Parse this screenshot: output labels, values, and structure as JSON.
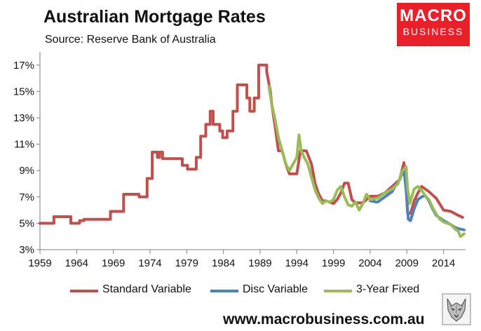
{
  "header": {
    "title": "Australian Mortgage Rates",
    "subtitle": "Source: Reserve Bank of Australia"
  },
  "logo": {
    "line1": "MACRO",
    "line2": "BUSINESS"
  },
  "footer": {
    "url": "www.macrobusiness.com.au"
  },
  "colors": {
    "standard_variable": "#c0504d",
    "disc_variable": "#4f81bd",
    "fixed_3yr": "#9bbb59",
    "axis": "#7f7f7f",
    "logo": "#e8202a"
  },
  "chart_data": {
    "type": "line",
    "title": "Australian Mortgage Rates",
    "xlabel": "",
    "ylabel": "",
    "xlim": [
      1959,
      2017
    ],
    "ylim": [
      3,
      18
    ],
    "x_ticks": [
      1959,
      1964,
      1969,
      1974,
      1979,
      1984,
      1989,
      1994,
      1999,
      2004,
      2009,
      2014
    ],
    "y_ticks": [
      3,
      5,
      7,
      9,
      11,
      13,
      15,
      17
    ],
    "y_tick_labels": [
      "3%",
      "5%",
      "7%",
      "9%",
      "11%",
      "13%",
      "15%",
      "17%"
    ],
    "grid": false,
    "legend_position": "bottom",
    "series": [
      {
        "name": "Standard Variable",
        "color": "#c0504d",
        "x": [
          1959,
          1960.9,
          1960.9,
          1963.2,
          1963.2,
          1964.4,
          1964.4,
          1965,
          1965,
          1968.6,
          1968.6,
          1970.4,
          1970.4,
          1972.5,
          1972.5,
          1973.6,
          1973.6,
          1974.3,
          1974.3,
          1975,
          1975,
          1975.3,
          1975.3,
          1975.7,
          1975.7,
          1976.1,
          1976.1,
          1978.4,
          1978.4,
          1979.1,
          1979.1,
          1980.3,
          1980.3,
          1980.9,
          1980.9,
          1981.6,
          1981.6,
          1982.2,
          1982.2,
          1982.6,
          1982.6,
          1983.5,
          1983.5,
          1983.9,
          1983.9,
          1984.3,
          1984.3,
          1984.5,
          1984.5,
          1985.3,
          1985.3,
          1985.9,
          1985.9,
          1987.2,
          1987.2,
          1987.6,
          1987.6,
          1988.2,
          1988.2,
          1988.8,
          1988.8,
          1989.9,
          1989.9,
          1990.4,
          1990.6,
          1991,
          1991.5,
          1992,
          1992.5,
          1993,
          1993.5,
          1994,
          1994.5,
          1995,
          1995.3,
          1996,
          1996.5,
          1997,
          1997.5,
          1998,
          1999,
          1999.5,
          2000,
          2000.5,
          2001,
          2001.5,
          2002,
          2003,
          2004,
          2005,
          2006,
          2007,
          2008,
          2008.6,
          2008.9,
          2009.1,
          2009.5,
          2010,
          2010.5,
          2011,
          2012,
          2013,
          2014,
          2015,
          2016,
          2016.6
        ],
        "values": [
          5.0,
          5.0,
          5.5,
          5.5,
          5.0,
          5.0,
          5.2,
          5.2,
          5.3,
          5.3,
          5.9,
          5.9,
          7.2,
          7.2,
          7.0,
          7.0,
          8.4,
          8.4,
          10.4,
          10.4,
          10.0,
          10.0,
          10.4,
          10.4,
          9.9,
          9.9,
          9.9,
          9.9,
          9.4,
          9.4,
          9.1,
          9.1,
          10.0,
          10.0,
          11.6,
          11.6,
          12.5,
          12.5,
          13.5,
          13.5,
          12.5,
          12.5,
          12.0,
          12.0,
          11.5,
          11.5,
          11.5,
          11.5,
          12.0,
          12.0,
          13.5,
          13.5,
          15.5,
          15.5,
          14.5,
          14.5,
          13.5,
          13.5,
          14.5,
          14.5,
          17.0,
          17.0,
          16.5,
          15.0,
          14.0,
          12.5,
          10.5,
          10.5,
          9.5,
          8.75,
          8.75,
          8.75,
          10.5,
          10.5,
          10.5,
          9.5,
          8.0,
          7.2,
          6.7,
          6.7,
          6.5,
          6.8,
          7.3,
          8.05,
          8.05,
          6.8,
          6.55,
          6.55,
          7.05,
          7.05,
          7.3,
          7.8,
          8.3,
          9.6,
          7.8,
          5.75,
          5.75,
          6.7,
          7.3,
          7.8,
          7.4,
          6.9,
          6.0,
          5.9,
          5.6,
          5.45
        ]
      },
      {
        "name": "Disc Variable",
        "color": "#4f81bd",
        "x": [
          2004,
          2005,
          2006,
          2007,
          2007.5,
          2008,
          2008.6,
          2008.9,
          2009.2,
          2009.5,
          2010,
          2010.5,
          2011,
          2011.5,
          2012,
          2012.5,
          2013,
          2014,
          2015,
          2015.5,
          2016,
          2016.8
        ],
        "values": [
          6.7,
          6.6,
          7.0,
          7.4,
          7.9,
          8.3,
          9.1,
          7.5,
          5.3,
          5.2,
          6.1,
          6.8,
          7.0,
          7.1,
          6.7,
          6.1,
          5.6,
          5.2,
          4.9,
          4.7,
          4.6,
          4.5
        ]
      },
      {
        "name": "3-Year Fixed",
        "color": "#9bbb59",
        "x": [
          1990.2,
          1990.6,
          1991,
          1991.5,
          1992,
          1992.5,
          1993,
          1993.5,
          1994,
          1994.3,
          1994.6,
          1995,
          1995.5,
          1996,
          1996.5,
          1997,
          1997.5,
          1998,
          1998.5,
          1999,
          1999.5,
          2000,
          2000.5,
          2001,
          2001.5,
          2002,
          2002.5,
          2003,
          2003.5,
          2004,
          2005,
          2006,
          2007,
          2007.8,
          2008.3,
          2008.9,
          2009.1,
          2009.4,
          2010,
          2010.5,
          2011,
          2011.5,
          2012,
          2012.5,
          2013,
          2013.5,
          2014,
          2015,
          2015.5,
          2016,
          2016.3,
          2016.8
        ],
        "values": [
          15.4,
          14.0,
          13.0,
          11.5,
          10.5,
          9.5,
          9.0,
          9.5,
          10.0,
          11.7,
          10.5,
          10.0,
          9.5,
          8.5,
          7.5,
          6.9,
          6.5,
          6.7,
          6.6,
          6.8,
          7.5,
          7.8,
          7.0,
          6.4,
          6.3,
          6.6,
          6.0,
          6.5,
          7.2,
          6.8,
          6.9,
          7.3,
          7.6,
          8.0,
          8.9,
          9.3,
          7.6,
          6.5,
          7.6,
          7.8,
          7.5,
          7.1,
          6.8,
          6.2,
          5.7,
          5.3,
          5.1,
          4.9,
          4.6,
          4.4,
          4.0,
          4.2
        ]
      }
    ]
  }
}
